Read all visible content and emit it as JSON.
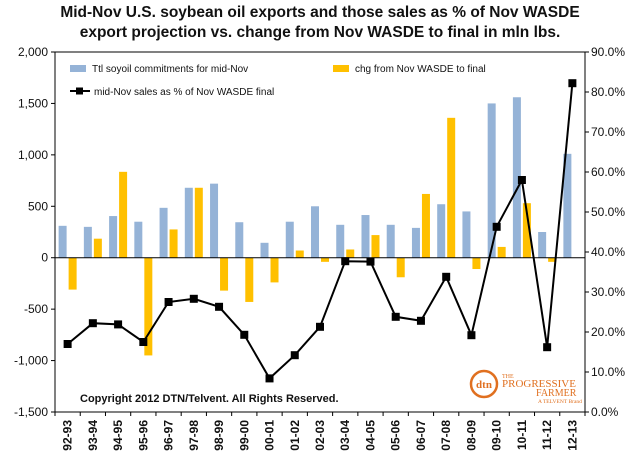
{
  "chart_data": {
    "type": "bar",
    "title_lines": [
      "Mid-Nov U.S. soybean oil exports  and those sales as % of Nov WASDE",
      "export projection vs. change from Nov WASDE to final in mln lbs."
    ],
    "categories": [
      "92-93",
      "93-94",
      "94-95",
      "95-96",
      "96-97",
      "97-98",
      "98-99",
      "99-00",
      "00-01",
      "01-02",
      "02-03",
      "03-04",
      "04-05",
      "05-06",
      "06-07",
      "07-08",
      "08-09",
      "09-10",
      "10-11",
      "11-12",
      "12-13"
    ],
    "series": [
      {
        "name": "Ttl soyoil commitments for mid-Nov",
        "type": "bar",
        "axis": "left",
        "color": "#95b3d7",
        "values": [
          310,
          300,
          405,
          350,
          485,
          680,
          720,
          345,
          145,
          350,
          500,
          320,
          415,
          320,
          290,
          520,
          450,
          1500,
          1560,
          250,
          1010
        ]
      },
      {
        "name": "chg from Nov WASDE to final",
        "type": "bar",
        "axis": "left",
        "color": "#ffc000",
        "values": [
          -310,
          185,
          835,
          -950,
          275,
          680,
          -320,
          -430,
          -240,
          70,
          -40,
          80,
          220,
          -190,
          620,
          1360,
          -110,
          105,
          530,
          -40,
          null
        ]
      },
      {
        "name": "mid-Nov sales as % of Nov WASDE final",
        "type": "line",
        "axis": "right",
        "color": "#000000",
        "values": [
          17.0,
          22.2,
          21.9,
          17.5,
          27.5,
          28.3,
          26.3,
          19.3,
          8.4,
          14.2,
          21.3,
          37.7,
          37.6,
          23.8,
          22.8,
          33.8,
          19.2,
          46.3,
          58.0,
          16.2,
          82.2
        ]
      }
    ],
    "left_axis": {
      "min": -1500,
      "max": 2000,
      "step": 500,
      "tick_labels": [
        "-1,500",
        "-1,000",
        "-500",
        "0",
        "500",
        "1,000",
        "1,500",
        "2,000"
      ]
    },
    "right_axis": {
      "min": 0,
      "max": 90,
      "step": 10,
      "tick_labels": [
        "0.0%",
        "10.0%",
        "20.0%",
        "30.0%",
        "40.0%",
        "50.0%",
        "60.0%",
        "70.0%",
        "80.0%",
        "90.0%"
      ]
    },
    "legend_placement": "top-left",
    "grid": false
  },
  "copyright": "Copyright 2012 DTN/Telvent. All Rights Reserved.",
  "logo": {
    "mark": "dtn",
    "line1": "THE",
    "line2": "PROGRESSIVE",
    "line3": "FARMER",
    "line4": "A TELVENT Brand",
    "color": "#e07020"
  }
}
